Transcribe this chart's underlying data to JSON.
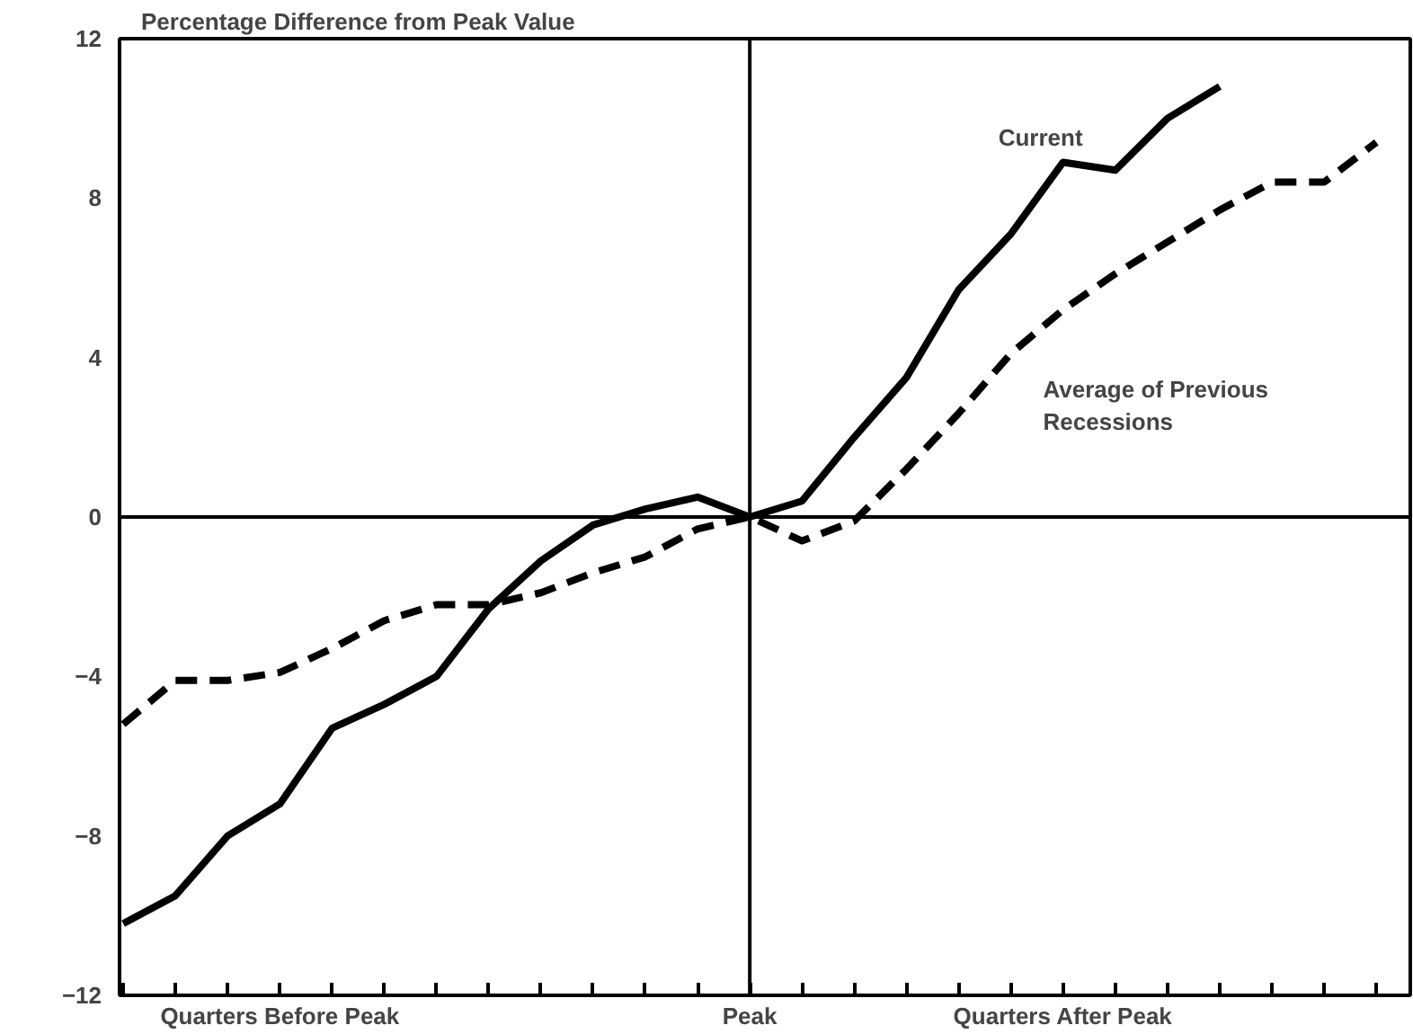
{
  "chart_data": {
    "type": "line",
    "ylabel": "Percentage Difference from Peak Value",
    "categories": [
      null,
      null,
      null,
      "Quarters Before Peak",
      null,
      null,
      null,
      null,
      null,
      null,
      null,
      null,
      "Peak",
      null,
      null,
      null,
      null,
      null,
      "Quarters After Peak",
      null,
      null,
      null,
      null,
      null,
      null
    ],
    "series": [
      {
        "name": "Current",
        "color": "#000000",
        "line_style": "solid",
        "values": [
          -10.2,
          -9.5,
          -8.0,
          -7.2,
          -5.3,
          -4.7,
          -4.0,
          -2.3,
          -1.1,
          -0.2,
          0.2,
          0.5,
          0,
          0.4,
          2.0,
          3.5,
          5.7,
          7.1,
          8.9,
          8.7,
          10.0,
          10.8,
          null,
          null,
          null
        ]
      },
      {
        "name": "Average of Previous Recessions",
        "color": "#000000",
        "line_style": "dashed",
        "values": [
          -5.2,
          -4.1,
          -4.1,
          -3.9,
          -3.3,
          -2.6,
          -2.2,
          -2.2,
          -1.9,
          -1.4,
          -1.0,
          -0.3,
          0,
          -0.6,
          -0.1,
          1.2,
          2.6,
          4.1,
          5.2,
          6.1,
          6.9,
          7.7,
          8.4,
          8.4,
          9.4
        ]
      }
    ],
    "ylim": [
      -12,
      12
    ],
    "yticks": [
      -12,
      -8,
      -4,
      0,
      4,
      8,
      12
    ],
    "ref_lines": [
      {
        "axis": "x",
        "value": "Peak"
      },
      {
        "axis": "y",
        "value": 0
      }
    ],
    "grid": false,
    "legend": false,
    "marker": "none"
  }
}
